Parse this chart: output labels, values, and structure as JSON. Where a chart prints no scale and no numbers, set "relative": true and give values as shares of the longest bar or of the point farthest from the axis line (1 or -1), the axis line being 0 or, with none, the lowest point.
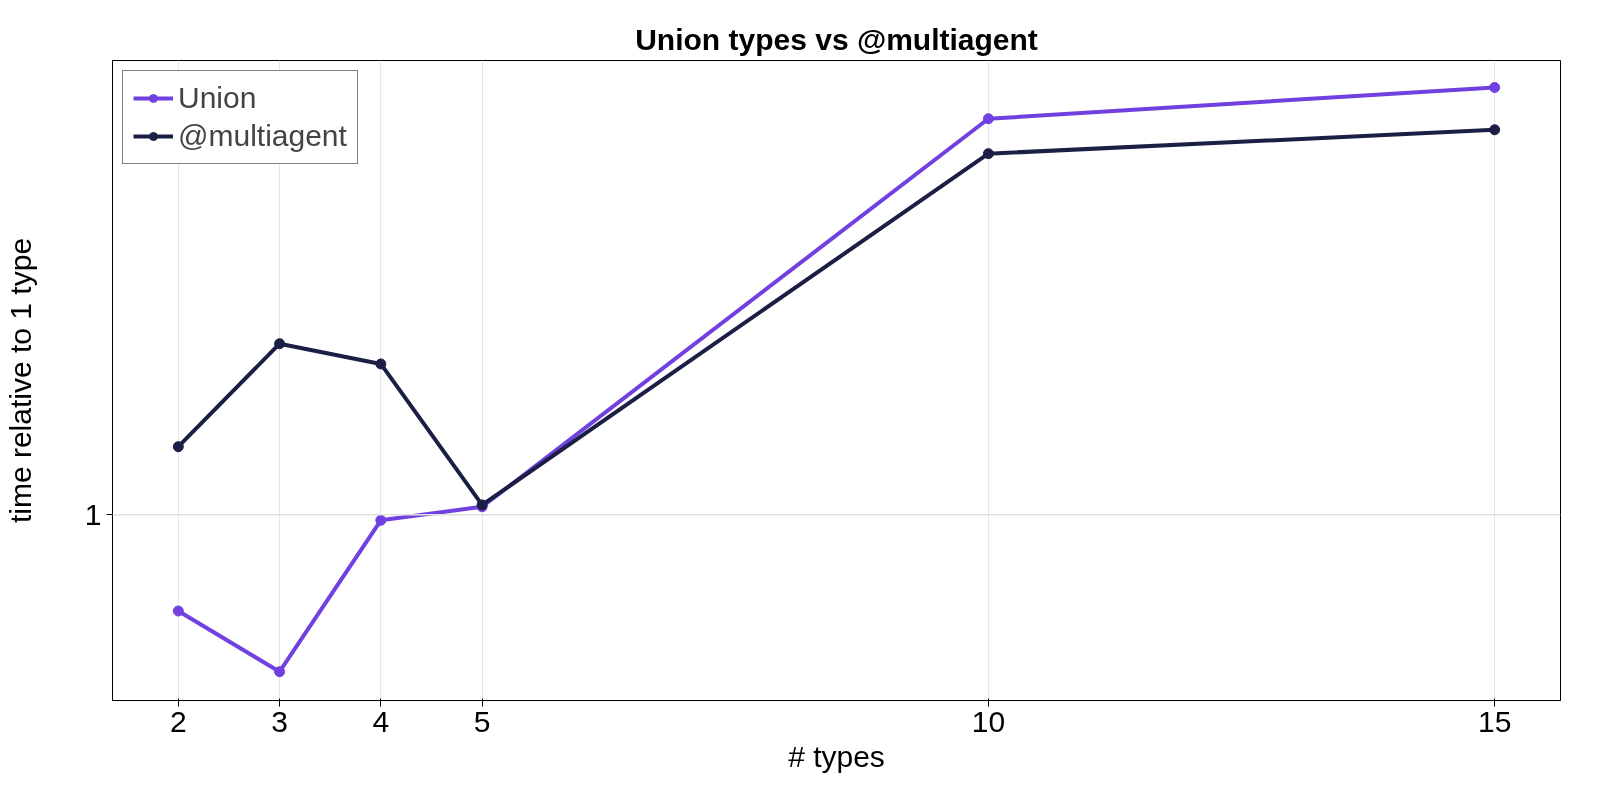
{
  "chart_data": {
    "type": "line",
    "title": "Union types vs @multiagent",
    "xlabel": "# types",
    "ylabel": "time relative to 1 type",
    "x": [
      2,
      3,
      4,
      5,
      10,
      15
    ],
    "xlim": [
      1.35,
      15.65
    ],
    "xticks": [
      2,
      3,
      4,
      5,
      10,
      15
    ],
    "relative": true,
    "series": [
      {
        "name": "Union",
        "color": "#7040e0",
        "values": [
          0.146,
          0.047,
          0.294,
          0.316,
          0.949,
          1.0
        ]
      },
      {
        "name": "@multiagent",
        "color": "#1b1f45",
        "values": [
          0.414,
          0.582,
          0.549,
          0.319,
          0.892,
          0.931
        ]
      }
    ],
    "ref_lines": [
      {
        "axis": "y",
        "value": 0.303,
        "color": "#e0e0e0"
      }
    ],
    "annotations": [
      "1"
    ],
    "grid": "x",
    "legend": "top left",
    "marker": "circle",
    "line_style": "solid"
  }
}
